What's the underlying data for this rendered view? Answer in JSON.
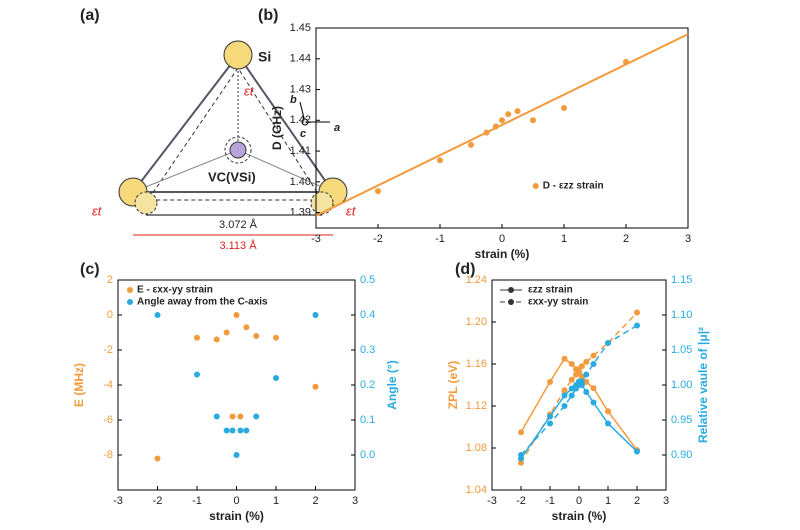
{
  "diagram": {
    "label": "(a)",
    "si": "Si",
    "strain": "εt",
    "axis_b": "b",
    "axis_c": "c",
    "axis_a": "a",
    "vacancy": "VC(VSi)",
    "inner_distance": "3.072 Å",
    "outer_distance": "3.113 Å"
  },
  "chart_data": [
    {
      "type": "scatter",
      "label": "(b)",
      "xlabel": "strain (%)",
      "ylabel": "D (GHz)",
      "xlim": [
        -3,
        3
      ],
      "xticks": [
        -3,
        -2,
        -1,
        0,
        1,
        2,
        3
      ],
      "ylim": [
        1.385,
        1.45
      ],
      "yticks": [
        1.39,
        {
          "value": 1.4,
          "label": "1.40"
        },
        1.41,
        1.42,
        1.43,
        1.44,
        1.45
      ],
      "legend": "lower right",
      "x": [
        -2,
        -1,
        -0.5,
        -0.25,
        -0.1,
        0,
        0.1,
        0.25,
        0.5,
        1,
        2
      ],
      "series": [
        {
          "name": "D - εzz strain",
          "color": "#f39a3c",
          "values": [
            1.397,
            1.407,
            1.412,
            1.416,
            1.418,
            1.42,
            1.422,
            1.423,
            1.42,
            1.424,
            1.439
          ]
        }
      ],
      "fit": {
        "color": "#f39a3c",
        "x": [
          -3,
          3
        ],
        "values": [
          1.389,
          1.448
        ]
      }
    },
    {
      "type": "scatter",
      "label": "(c)",
      "xlabel": "strain (%)",
      "ylabel": "E (MHz)",
      "y2label": "Angle (°)",
      "ycolor": "#f39a3c",
      "y2color": "#29abe2",
      "xlim": [
        -3,
        3
      ],
      "xticks": [
        -3,
        -2,
        -1,
        0,
        1,
        2,
        3
      ],
      "ylim": [
        -10,
        2
      ],
      "yticks": [
        -8,
        -6,
        -4,
        -2,
        0,
        2
      ],
      "y2lim": [
        -0.1,
        0.5
      ],
      "y2ticks": [
        {
          "value": 0,
          "label": "0.0"
        },
        0.1,
        0.2,
        0.3,
        0.4,
        0.5
      ],
      "legend": "upper left",
      "x": [
        -2,
        -1,
        -0.5,
        -0.25,
        -0.1,
        0,
        0.1,
        0.25,
        0.5,
        1,
        2
      ],
      "series": [
        {
          "name": "E - εxx-yy strain",
          "color": "#f39a3c",
          "values": [
            -8.2,
            -1.3,
            -1.4,
            -1.0,
            -5.8,
            0,
            -5.8,
            -0.7,
            -1.2,
            -1.3,
            -4.1
          ]
        },
        {
          "name": "Angle away from the C-axis",
          "color": "#29abe2",
          "axis": "y2",
          "values": [
            0.4,
            0.23,
            0.11,
            0.07,
            0.07,
            0,
            0.07,
            0.07,
            0.11,
            0.22,
            0.4
          ]
        }
      ]
    },
    {
      "type": "line",
      "label": "(d)",
      "xlabel": "strain (%)",
      "ylabel": "ZPL (eV)",
      "y2label": "Relative vaule of |μ|²",
      "ycolor": "#f39a3c",
      "y2color": "#29abe2",
      "xlim": [
        -3,
        3
      ],
      "xticks": [
        -3,
        -2,
        -1,
        0,
        1,
        2,
        3
      ],
      "ylim": [
        1.04,
        1.24
      ],
      "yticks": [
        1.04,
        1.08,
        1.12,
        1.16,
        {
          "value": 1.2,
          "label": "1.20"
        },
        1.24
      ],
      "y2lim": [
        0.85,
        1.15
      ],
      "y2ticks": [
        {
          "value": 0.9,
          "label": "0.90"
        },
        0.95,
        {
          "value": 1,
          "label": "1.00"
        },
        1.05,
        {
          "value": 1.1,
          "label": "1.10"
        },
        1.15
      ],
      "legend": "upper left",
      "x": [
        -2,
        -1,
        -0.5,
        -0.25,
        -0.1,
        0,
        0.1,
        0.25,
        0.5,
        1,
        2
      ],
      "series": [
        {
          "name": "εzz strain",
          "color": "#f39a3c",
          "dashed": false,
          "values": [
            1.095,
            1.143,
            1.165,
            1.16,
            1.155,
            1.152,
            1.148,
            1.143,
            1.137,
            1.115,
            1.078
          ]
        },
        {
          "name": "εxx-yy strain",
          "color": "#f39a3c",
          "dashed": true,
          "values": [
            1.066,
            1.112,
            1.135,
            1.145,
            1.15,
            1.155,
            1.158,
            1.162,
            1.168,
            1.18,
            1.209
          ]
        },
        {
          "color": "#29abe2",
          "axis": "y2",
          "dashed": false,
          "values": [
            0.895,
            0.955,
            0.985,
            0.995,
            1.0,
            1.005,
            1.0,
            0.99,
            0.975,
            0.945,
            0.905
          ]
        },
        {
          "color": "#29abe2",
          "axis": "y2",
          "dashed": true,
          "values": [
            0.9,
            0.945,
            0.97,
            0.985,
            0.995,
            1.0,
            1.005,
            1.015,
            1.03,
            1.06,
            1.085
          ]
        }
      ]
    }
  ]
}
